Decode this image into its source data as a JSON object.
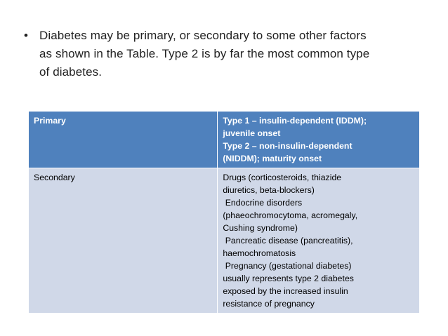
{
  "bullet": {
    "symbol": "•",
    "text_lines": [
      "Diabetes may be primary, or secondary to some other factors",
      "as shown in the Table. Type 2 is by far the most common type",
      "of diabetes."
    ]
  },
  "table": {
    "header": {
      "left": "Primary",
      "right_lines": [
        "Type 1 – insulin-dependent (IDDM);",
        "juvenile onset",
        "Type 2 – non-insulin-dependent",
        "(NIDDM); maturity onset"
      ]
    },
    "row": {
      "left": "Secondary",
      "right_lines": [
        "Drugs (corticosteroids, thiazide",
        "diuretics, beta-blockers)",
        " Endocrine disorders",
        "(phaeochromocytoma, acromegaly,",
        "Cushing syndrome)",
        " Pancreatic disease (pancreatitis),",
        "haemochromatosis",
        " Pregnancy (gestational diabetes)",
        "usually represents type 2 diabetes",
        "exposed by the increased insulin",
        "resistance of pregnancy"
      ]
    },
    "colors": {
      "header_bg": "#4f81bd",
      "body_bg": "#d0d8e8"
    }
  }
}
